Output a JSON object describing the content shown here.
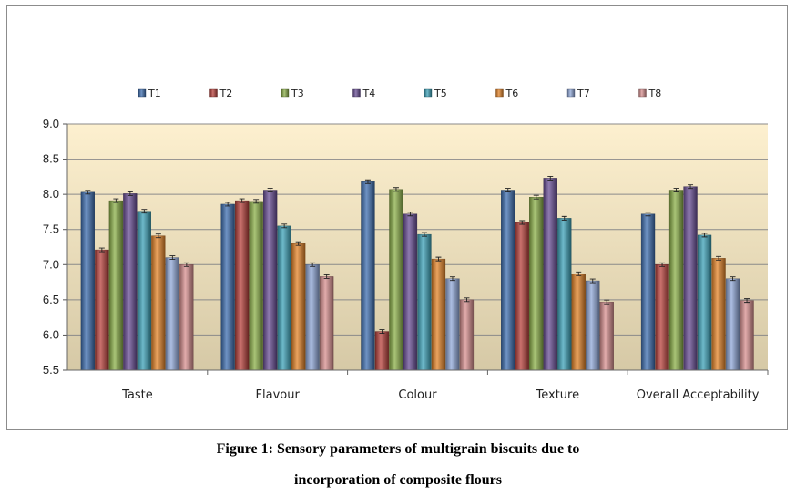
{
  "caption": {
    "line1": "Figure 1: Sensory parameters of multigrain biscuits due to",
    "line2": "incorporation of composite flours"
  },
  "chart_data": {
    "type": "bar",
    "categories": [
      "Taste",
      "Flavour",
      "Colour",
      "Texture",
      "Overall Acceptability"
    ],
    "ylim": [
      5.5,
      9.0
    ],
    "yticks": [
      "5.5",
      "6.0",
      "6.5",
      "7.0",
      "7.5",
      "8.0",
      "8.5",
      "9.0"
    ],
    "legend_position": "top",
    "grid": true,
    "error_bars": true,
    "series": [
      {
        "name": "T1",
        "color": "#3f6fb0",
        "values": [
          8.03,
          7.86,
          8.18,
          8.06,
          7.72
        ]
      },
      {
        "name": "T2",
        "color": "#b8413c",
        "values": [
          7.21,
          7.91,
          6.05,
          7.6,
          7.0
        ]
      },
      {
        "name": "T3",
        "color": "#8cb04a",
        "values": [
          7.91,
          7.9,
          8.07,
          7.96,
          8.06
        ]
      },
      {
        "name": "T4",
        "color": "#6a4f96",
        "values": [
          8.01,
          8.06,
          7.72,
          8.23,
          8.11
        ]
      },
      {
        "name": "T5",
        "color": "#3ea2b8",
        "values": [
          7.76,
          7.55,
          7.43,
          7.66,
          7.42
        ]
      },
      {
        "name": "T6",
        "color": "#e3842a",
        "values": [
          7.41,
          7.3,
          7.08,
          6.87,
          7.09
        ]
      },
      {
        "name": "T7",
        "color": "#90a8d8",
        "values": [
          7.1,
          7.0,
          6.8,
          6.77,
          6.8
        ]
      },
      {
        "name": "T8",
        "color": "#d89090",
        "values": [
          7.0,
          6.83,
          6.5,
          6.47,
          6.49
        ]
      }
    ]
  }
}
